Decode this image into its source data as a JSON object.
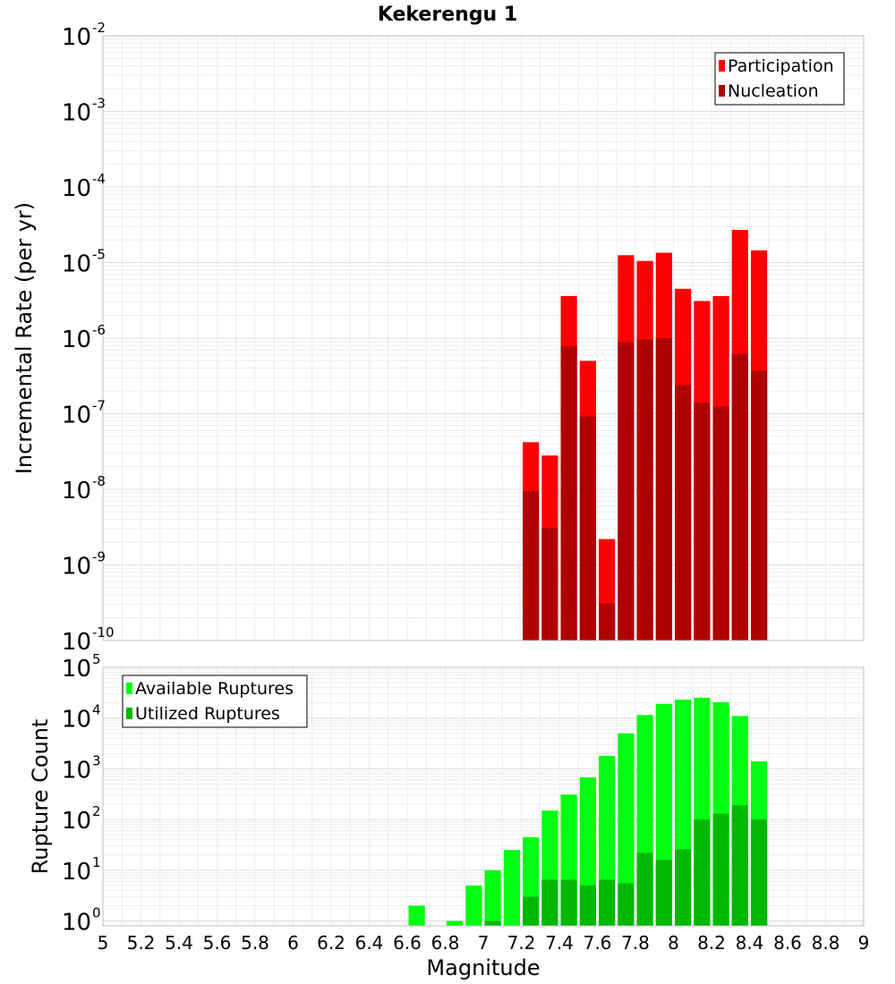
{
  "chart_data": [
    {
      "type": "bar",
      "title": "Kekerengu 1",
      "ylabel": "Incremental Rate (per yr)",
      "yscale": "log",
      "ylim": [
        1e-10,
        0.01
      ],
      "xlim": [
        5,
        9
      ],
      "x": [
        7.25,
        7.35,
        7.45,
        7.55,
        7.65,
        7.75,
        7.85,
        7.95,
        8.05,
        8.15,
        8.25,
        8.35,
        8.45
      ],
      "series": [
        {
          "name": "Participation",
          "color": "#ff0000",
          "values": [
            4.2e-08,
            2.8e-08,
            3.6e-06,
            5e-07,
            2.2e-09,
            1.25e-05,
            1.05e-05,
            1.35e-05,
            4.5e-06,
            3.1e-06,
            3.6e-06,
            2.7e-05,
            1.45e-05
          ]
        },
        {
          "name": "Nucleation",
          "color": "#b00000",
          "values": [
            9.5e-09,
            3.1e-09,
            7.8e-07,
            9.2e-08,
            3.1e-10,
            8.8e-07,
            9.6e-07,
            1e-06,
            2.4e-07,
            1.4e-07,
            1.25e-07,
            6.2e-07,
            3.7e-07
          ]
        }
      ],
      "legend_position": "top-right",
      "y_tick_labels": [
        {
          "base": "10",
          "exp": "-10",
          "value": 1e-10
        },
        {
          "base": "10",
          "exp": "-9",
          "value": 1e-09
        },
        {
          "base": "10",
          "exp": "-8",
          "value": 1e-08
        },
        {
          "base": "10",
          "exp": "-7",
          "value": 1e-07
        },
        {
          "base": "10",
          "exp": "-6",
          "value": 1e-06
        },
        {
          "base": "10",
          "exp": "-5",
          "value": 1e-05
        },
        {
          "base": "10",
          "exp": "-4",
          "value": 0.0001
        },
        {
          "base": "10",
          "exp": "-3",
          "value": 0.001
        },
        {
          "base": "10",
          "exp": "-2",
          "value": 0.01
        }
      ],
      "grid": true
    },
    {
      "type": "bar",
      "title": "",
      "ylabel": "Rupture Count",
      "xlabel": "Magnitude",
      "yscale": "log",
      "ylim": [
        0.8,
        100000.0
      ],
      "xlim": [
        5,
        9
      ],
      "x": [
        6.65,
        6.75,
        6.85,
        6.95,
        7.05,
        7.15,
        7.25,
        7.35,
        7.45,
        7.55,
        7.65,
        7.75,
        7.85,
        7.95,
        8.05,
        8.15,
        8.25,
        8.35,
        8.45
      ],
      "series": [
        {
          "name": "Available Ruptures",
          "color": "#00ff10",
          "values": [
            2,
            null,
            1,
            5,
            10,
            25,
            45,
            150,
            310,
            680,
            1800,
            5000,
            11500,
            19000,
            23000,
            25000,
            20500,
            11000,
            1400
          ]
        },
        {
          "name": "Utilized Ruptures",
          "color": "#00b800",
          "values": [
            null,
            null,
            null,
            null,
            1,
            null,
            3,
            6.5,
            6.5,
            5,
            6.5,
            5.5,
            22,
            16,
            26,
            100,
            130,
            190,
            100
          ]
        }
      ],
      "legend_position": "top-left",
      "y_tick_labels": [
        {
          "base": "10",
          "exp": "0",
          "value": 1
        },
        {
          "base": "10",
          "exp": "1",
          "value": 10
        },
        {
          "base": "10",
          "exp": "2",
          "value": 100
        },
        {
          "base": "10",
          "exp": "3",
          "value": 1000
        },
        {
          "base": "10",
          "exp": "4",
          "value": 10000
        },
        {
          "base": "10",
          "exp": "5",
          "value": 100000
        }
      ],
      "x_tick_labels": [
        "5",
        "5.2",
        "5.4",
        "5.6",
        "5.8",
        "6",
        "6.2",
        "6.4",
        "6.6",
        "6.8",
        "7",
        "7.2",
        "7.4",
        "7.6",
        "7.8",
        "8",
        "8.2",
        "8.4",
        "8.6",
        "8.8",
        "9"
      ],
      "grid": true
    }
  ]
}
